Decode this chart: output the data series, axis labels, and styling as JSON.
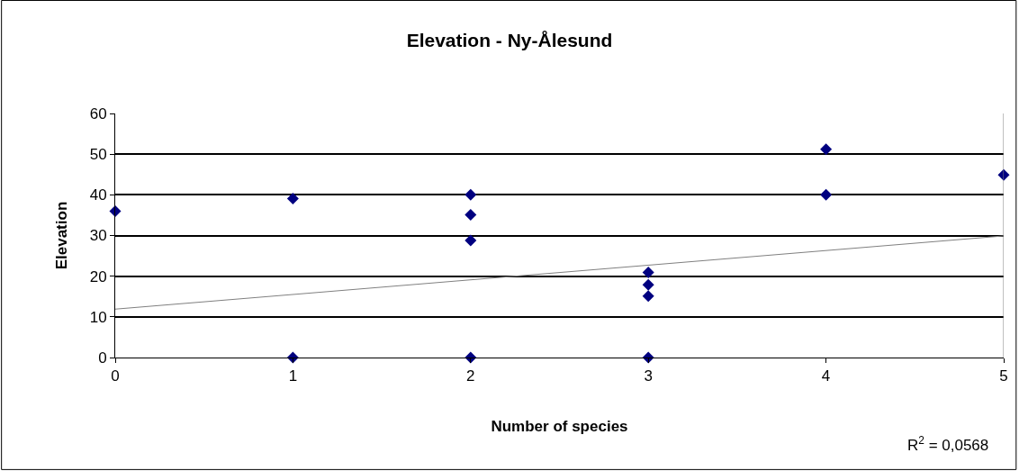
{
  "chart_data": {
    "type": "scatter",
    "title": "Elevation - Ny-Ålesund",
    "xlabel": "Number of species",
    "ylabel": "Elevation",
    "series": [
      {
        "color": "#000080",
        "x": [
          0,
          1,
          1,
          2,
          2,
          2,
          2,
          3,
          3,
          3,
          3,
          4,
          4,
          5
        ],
        "values": [
          36,
          39.1,
          0,
          40,
          35.1,
          28.8,
          0,
          20.9,
          17.9,
          15.1,
          0,
          51.2,
          40,
          44.9
        ],
        "marker": "diamond"
      },
      {
        "type": "line",
        "color": "#808080",
        "x": [
          0,
          5
        ],
        "values": [
          11.9,
          29.9
        ],
        "marker": "none"
      }
    ],
    "xlim": [
      0,
      5
    ],
    "xticks": [
      0,
      1,
      2,
      3,
      4,
      5
    ],
    "ylim": [
      0,
      60
    ],
    "yticks": [
      0,
      10,
      20,
      30,
      40,
      50,
      60
    ],
    "grid": "y",
    "annotations": [
      "R$^{2}$ = 0,0568"
    ]
  }
}
